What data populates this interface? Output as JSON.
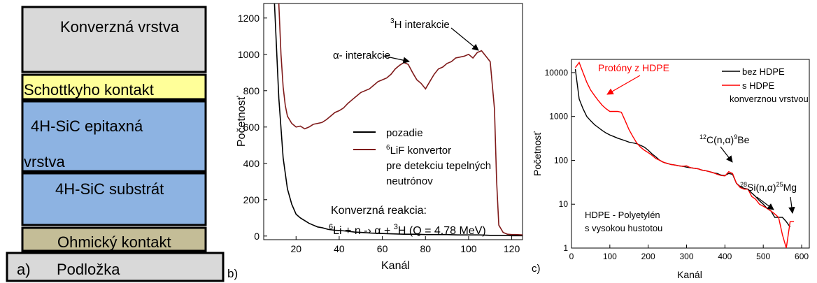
{
  "panel_a": {
    "layers": [
      {
        "label": "Konverzná vrstva",
        "color": "#d9d9d9"
      },
      {
        "label": "Schottkyho kontakt",
        "color": "#ffff99"
      },
      {
        "label": "4H-SiC epitaxná",
        "label2": "vrstva",
        "color": "#8db3e2"
      },
      {
        "label": "4H-SiC substrát",
        "color": "#8db3e2"
      },
      {
        "label": "Ohmický kontakt",
        "color": "#c4bd97"
      }
    ],
    "substrate": {
      "letter": "a)",
      "label": "Podložka",
      "color": "#d9d9d9"
    }
  },
  "panel_b_letter": "b)",
  "panel_c_letter": "c)",
  "chart_data": [
    {
      "type": "line",
      "xlabel": "Kanál",
      "ylabel": "Početnosť",
      "xlim": [
        5,
        125
      ],
      "ylim": [
        -20,
        1280
      ],
      "xticks": [
        "20",
        "40",
        "60",
        "80",
        "100",
        "120"
      ],
      "yticks": [
        "0",
        "200",
        "400",
        "600",
        "800",
        "1000",
        "1200"
      ],
      "series": [
        {
          "name": "pozadie",
          "color": "#000000",
          "x": [
            10,
            12,
            14,
            16,
            18,
            20,
            22,
            24,
            26,
            28,
            30,
            32,
            35,
            38,
            41,
            44,
            47,
            50,
            55,
            60,
            65,
            70,
            75,
            80,
            85,
            90,
            95,
            100,
            105,
            110,
            115,
            120,
            125
          ],
          "y": [
            1280,
            760,
            430,
            260,
            175,
            120,
            100,
            85,
            70,
            60,
            50,
            46,
            36,
            32,
            30,
            26,
            22,
            20,
            16,
            14,
            12,
            10,
            10,
            8,
            8,
            8,
            6,
            6,
            6,
            4,
            4,
            2,
            2
          ]
        },
        {
          "name": "6LiF konvertor pre detekciu tepelných neutrónov",
          "color": "#7f1a1a",
          "x": [
            12,
            13,
            14,
            15,
            16,
            18,
            20,
            22,
            24,
            26,
            28,
            30,
            32,
            34,
            36,
            38,
            40,
            42,
            44,
            46,
            48,
            50,
            52,
            54,
            56,
            58,
            60,
            62,
            64,
            66,
            68,
            70,
            72,
            74,
            76,
            78,
            80,
            82,
            84,
            86,
            88,
            90,
            92,
            94,
            96,
            98,
            100,
            102,
            104,
            106,
            108,
            110,
            112,
            113,
            114,
            116,
            118,
            120,
            122,
            125
          ],
          "y": [
            1280,
            1000,
            820,
            720,
            660,
            620,
            600,
            605,
            590,
            600,
            615,
            620,
            625,
            640,
            660,
            680,
            690,
            705,
            730,
            750,
            770,
            790,
            800,
            810,
            830,
            850,
            860,
            870,
            890,
            920,
            940,
            955,
            945,
            900,
            860,
            840,
            810,
            850,
            890,
            920,
            930,
            950,
            960,
            980,
            985,
            990,
            1000,
            980,
            1010,
            1020,
            990,
            960,
            700,
            300,
            60,
            20,
            10,
            8,
            8,
            6
          ]
        }
      ],
      "annotations": [
        {
          "text": "α- interakcie"
        },
        {
          "sup": "3",
          "text": "H interakcie"
        }
      ],
      "legend": {
        "line2": "pre detekciu tepelných",
        "line3": "neutrónov"
      },
      "reaction": {
        "title": "Konverzná reakcia:",
        "sup6": "6",
        "mid": "Li + n -› α + ",
        "sup3": "3",
        "end": "H (Q = 4.78 MeV)"
      }
    },
    {
      "type": "line",
      "xlabel": "Kanál",
      "ylabel": "Početnosť",
      "yscale": "log",
      "xlim": [
        0,
        620
      ],
      "ylim": [
        1,
        20000
      ],
      "xticks": [
        "0",
        "100",
        "200",
        "300",
        "400",
        "500",
        "600"
      ],
      "yticks": [
        "1",
        "10",
        "100",
        "1000",
        "10000"
      ],
      "series": [
        {
          "name": "bez HDPE",
          "color": "#000000",
          "x": [
            10,
            20,
            30,
            40,
            50,
            60,
            70,
            80,
            90,
            100,
            110,
            120,
            130,
            140,
            150,
            160,
            170,
            180,
            190,
            200,
            210,
            220,
            230,
            240,
            250,
            260,
            270,
            280,
            290,
            300,
            310,
            320,
            330,
            340,
            350,
            360,
            370,
            380,
            390,
            400,
            410,
            420,
            430,
            440,
            450,
            460,
            470,
            480,
            490,
            500,
            510,
            520,
            530,
            540,
            550,
            560,
            570
          ],
          "y": [
            12000,
            2500,
            1500,
            1000,
            800,
            650,
            560,
            480,
            420,
            380,
            350,
            320,
            300,
            280,
            260,
            250,
            240,
            220,
            200,
            170,
            140,
            120,
            100,
            90,
            85,
            80,
            78,
            75,
            73,
            70,
            68,
            66,
            64,
            60,
            58,
            55,
            52,
            50,
            46,
            45,
            50,
            48,
            30,
            25,
            23,
            22,
            18,
            15,
            12,
            10,
            8,
            7,
            5,
            5,
            5,
            4,
            3
          ]
        },
        {
          "name": "s HDPE konverznou vrstvou",
          "color": "#ff0000",
          "x": [
            10,
            20,
            30,
            40,
            50,
            60,
            70,
            80,
            90,
            100,
            110,
            120,
            130,
            140,
            150,
            160,
            170,
            180,
            190,
            200,
            210,
            220,
            230,
            240,
            250,
            260,
            270,
            280,
            290,
            300,
            310,
            320,
            330,
            340,
            350,
            360,
            370,
            380,
            390,
            400,
            410,
            420,
            430,
            440,
            450,
            460,
            470,
            480,
            490,
            500,
            510,
            520,
            530,
            540,
            550,
            560,
            570,
            580
          ],
          "y": [
            13000,
            17000,
            10000,
            6000,
            4000,
            3000,
            2300,
            1800,
            1500,
            1300,
            1300,
            1300,
            1250,
            800,
            500,
            350,
            250,
            200,
            170,
            150,
            130,
            110,
            100,
            90,
            85,
            80,
            78,
            75,
            73,
            75,
            68,
            66,
            64,
            60,
            58,
            55,
            52,
            48,
            45,
            44,
            55,
            50,
            30,
            24,
            22,
            22,
            15,
            13,
            10,
            9,
            8,
            7,
            6,
            5,
            2,
            1,
            4,
            4
          ]
        }
      ],
      "annotations": [
        {
          "text": "Protóny z HDPE",
          "color": "#ff0000"
        },
        {
          "sup1": "12",
          "mid": "C(n,α)",
          "sup2": "9",
          "end": "Be"
        },
        {
          "sup1": "28",
          "mid": "Si(n,α)",
          "sup2": "25",
          "end": "Mg"
        }
      ],
      "legend": {
        "line3": "konverznou vrstvou"
      },
      "note": {
        "line1": "HDPE - Polyetylén",
        "line2": "s vysokou hustotou"
      }
    }
  ]
}
